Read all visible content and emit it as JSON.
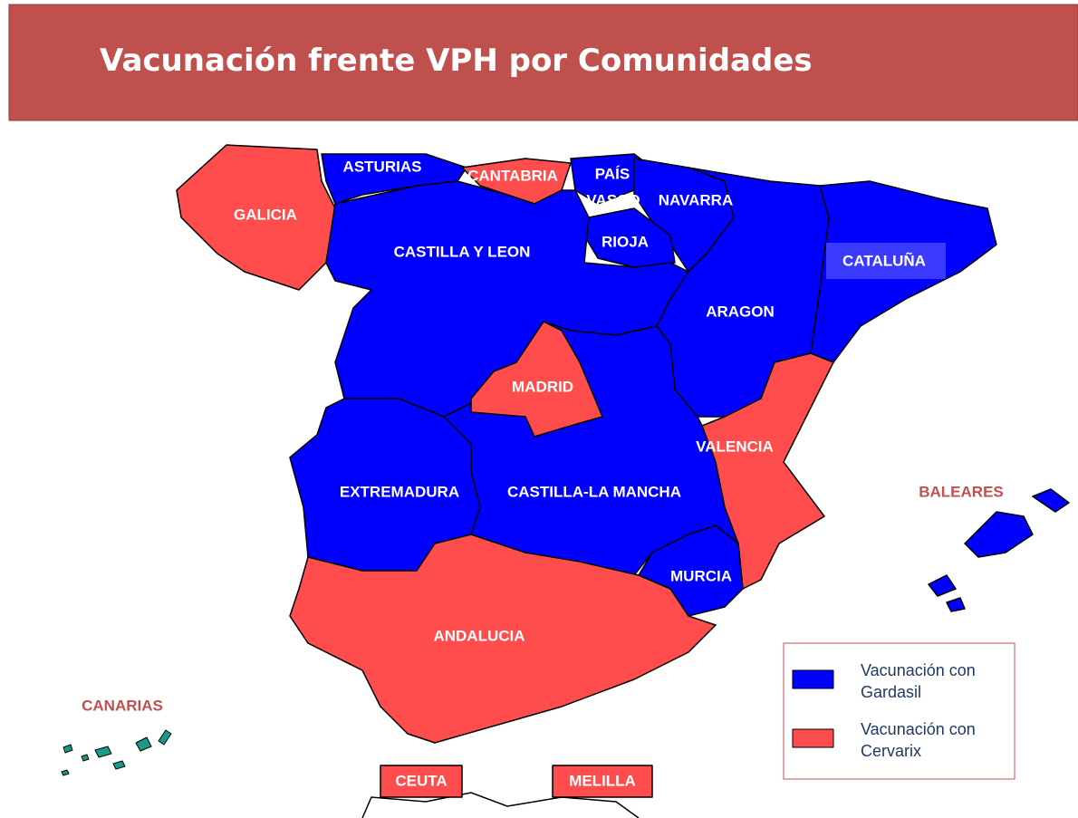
{
  "title": "Vacunación frente VPH por Comunidades",
  "legend": [
    {
      "label": "Vacunación con Gardasil",
      "color": "#0000ff"
    },
    {
      "label": "Vacunación con Cervarix",
      "color": "#ff4d4d"
    }
  ],
  "regions": [
    {
      "label": "GALICIA",
      "color": "#ff4d4d"
    },
    {
      "label": "ASTURIAS",
      "color": "#0000ff"
    },
    {
      "label": "CANTABRIA",
      "color": "#ff4d4d"
    },
    {
      "label": "PAÍS",
      "color": "#0000ff"
    },
    {
      "label": "VASCO",
      "color": "#0000ff"
    },
    {
      "label": "NAVARRA",
      "color": "#0000ff"
    },
    {
      "label": "RIOJA",
      "color": "#0000ff"
    },
    {
      "label": "CASTILLA Y LEON",
      "color": "#0000ff"
    },
    {
      "label": "CATALUÑA",
      "color": "#0000ff"
    },
    {
      "label": "ARAGON",
      "color": "#0000ff"
    },
    {
      "label": "MADRID",
      "color": "#ff4d4d"
    },
    {
      "label": "VALENCIA",
      "color": "#ff4d4d"
    },
    {
      "label": "EXTREMADURA",
      "color": "#0000ff"
    },
    {
      "label": "CASTILLA-LA MANCHA",
      "color": "#0000ff"
    },
    {
      "label": "MURCIA",
      "color": "#0000ff"
    },
    {
      "label": "ANDALUCIA",
      "color": "#ff4d4d"
    },
    {
      "label": "BALEARES",
      "color": "#0000ff"
    },
    {
      "label": "CANARIAS",
      "color": "#1a9a8a"
    },
    {
      "label": "CEUTA",
      "color": "#ff4d4d"
    },
    {
      "label": "MELILLA",
      "color": "#ff4d4d"
    }
  ]
}
